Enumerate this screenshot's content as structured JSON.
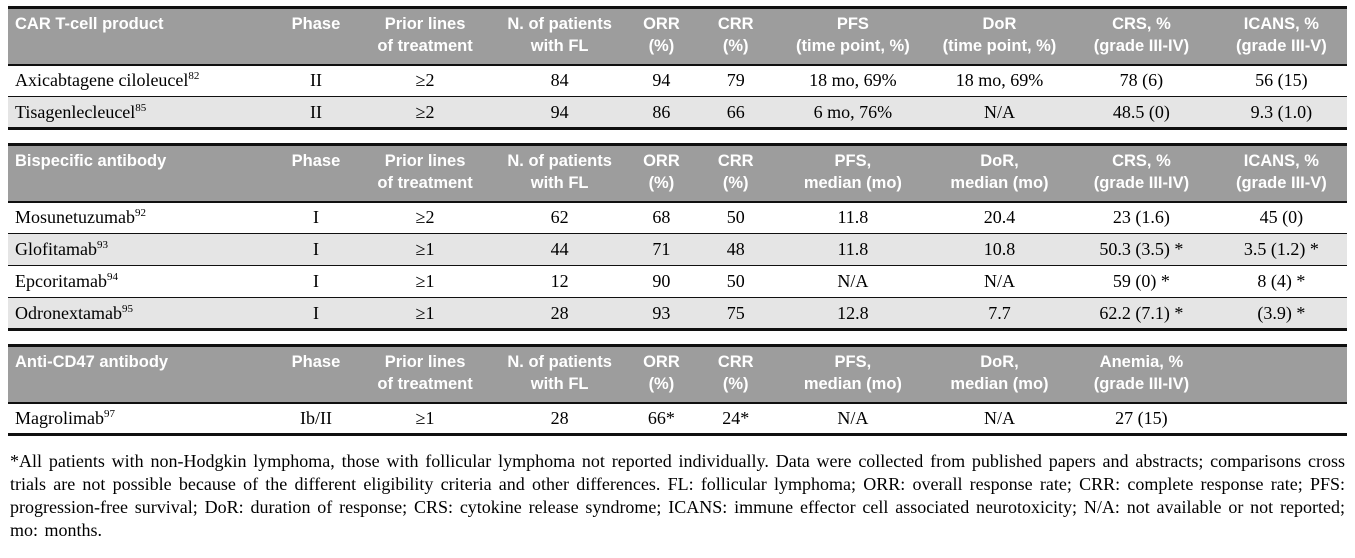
{
  "colors": {
    "header_bg": "#9d9d9d",
    "header_text": "#ffffff",
    "row_alt_bg": "#e5e5e5",
    "rule": "#101010"
  },
  "table": {
    "sections": [
      {
        "id": "car-t-cell",
        "header": [
          "CAR T-cell product",
          "Phase",
          "Prior lines\nof treatment",
          "N. of patients\nwith FL",
          "ORR\n(%)",
          "CRR\n(%)",
          "PFS\n(time point, %)",
          "DoR\n(time point, %)",
          "CRS, %\n(grade III-IV)",
          "ICANS, %\n(grade III-V)"
        ],
        "rows": [
          {
            "product": "Axicabtagene ciloleucel",
            "ref": "82",
            "values": [
              "II",
              "≥2",
              "84",
              "94",
              "79",
              "18 mo, 69%",
              "18 mo, 69%",
              "78 (6)",
              "56 (15)"
            ]
          },
          {
            "product": "Tisagenlecleucel",
            "ref": "85",
            "values": [
              "II",
              "≥2",
              "94",
              "86",
              "66",
              "6 mo, 76%",
              "N/A",
              "48.5 (0)",
              "9.3 (1.0)"
            ]
          }
        ]
      },
      {
        "id": "bispecific",
        "header": [
          "Bispecific antibody",
          "Phase",
          "Prior lines\nof treatment",
          "N. of patients\nwith FL",
          "ORR\n(%)",
          "CRR\n(%)",
          "PFS,\nmedian (mo)",
          "DoR,\nmedian (mo)",
          "CRS, %\n(grade III-IV)",
          "ICANS, %\n(grade III-V)"
        ],
        "rows": [
          {
            "product": "Mosunetuzumab",
            "ref": "92",
            "values": [
              "I",
              "≥2",
              "62",
              "68",
              "50",
              "11.8",
              "20.4",
              "23 (1.6)",
              "45 (0)"
            ]
          },
          {
            "product": "Glofitamab",
            "ref": "93",
            "values": [
              "I",
              "≥1",
              "44",
              "71",
              "48",
              "11.8",
              "10.8",
              "50.3 (3.5) *",
              "3.5 (1.2) *"
            ]
          },
          {
            "product": "Epcoritamab",
            "ref": "94",
            "values": [
              "I",
              "≥1",
              "12",
              "90",
              "50",
              "N/A",
              "N/A",
              "59 (0) *",
              "8 (4) *"
            ]
          },
          {
            "product": "Odronextamab",
            "ref": "95",
            "values": [
              "I",
              "≥1",
              "28",
              "93",
              "75",
              "12.8",
              "7.7",
              "62.2 (7.1) *",
              "(3.9) *"
            ]
          }
        ]
      },
      {
        "id": "anti-cd47",
        "header": [
          "Anti-CD47 antibody",
          "Phase",
          "Prior lines\nof treatment",
          "N. of patients\nwith FL",
          "ORR\n(%)",
          "CRR\n(%)",
          "PFS,\nmedian (mo)",
          "DoR,\nmedian (mo)",
          "Anemia, %\n(grade III-IV)",
          ""
        ],
        "rows": [
          {
            "product": "Magrolimab",
            "ref": "97",
            "values": [
              "Ib/II",
              "≥1",
              "28",
              "66*",
              "24*",
              "N/A",
              "N/A",
              "27 (15)",
              ""
            ]
          }
        ]
      }
    ]
  },
  "footnote": "*All patients with non-Hodgkin lymphoma, those with follicular lymphoma not reported individually. Data were collected from published papers and abstracts; comparisons cross trials are not possible because of the different eligibility criteria and other differences. FL: follicular lymphoma; ORR: overall response rate; CRR: complete response rate; PFS: progression-free survival; DoR: duration of response; CRS: cytokine release syndrome; ICANS: immune effector cell associated neurotoxicity; N/A: not available or not reported; mo: months."
}
